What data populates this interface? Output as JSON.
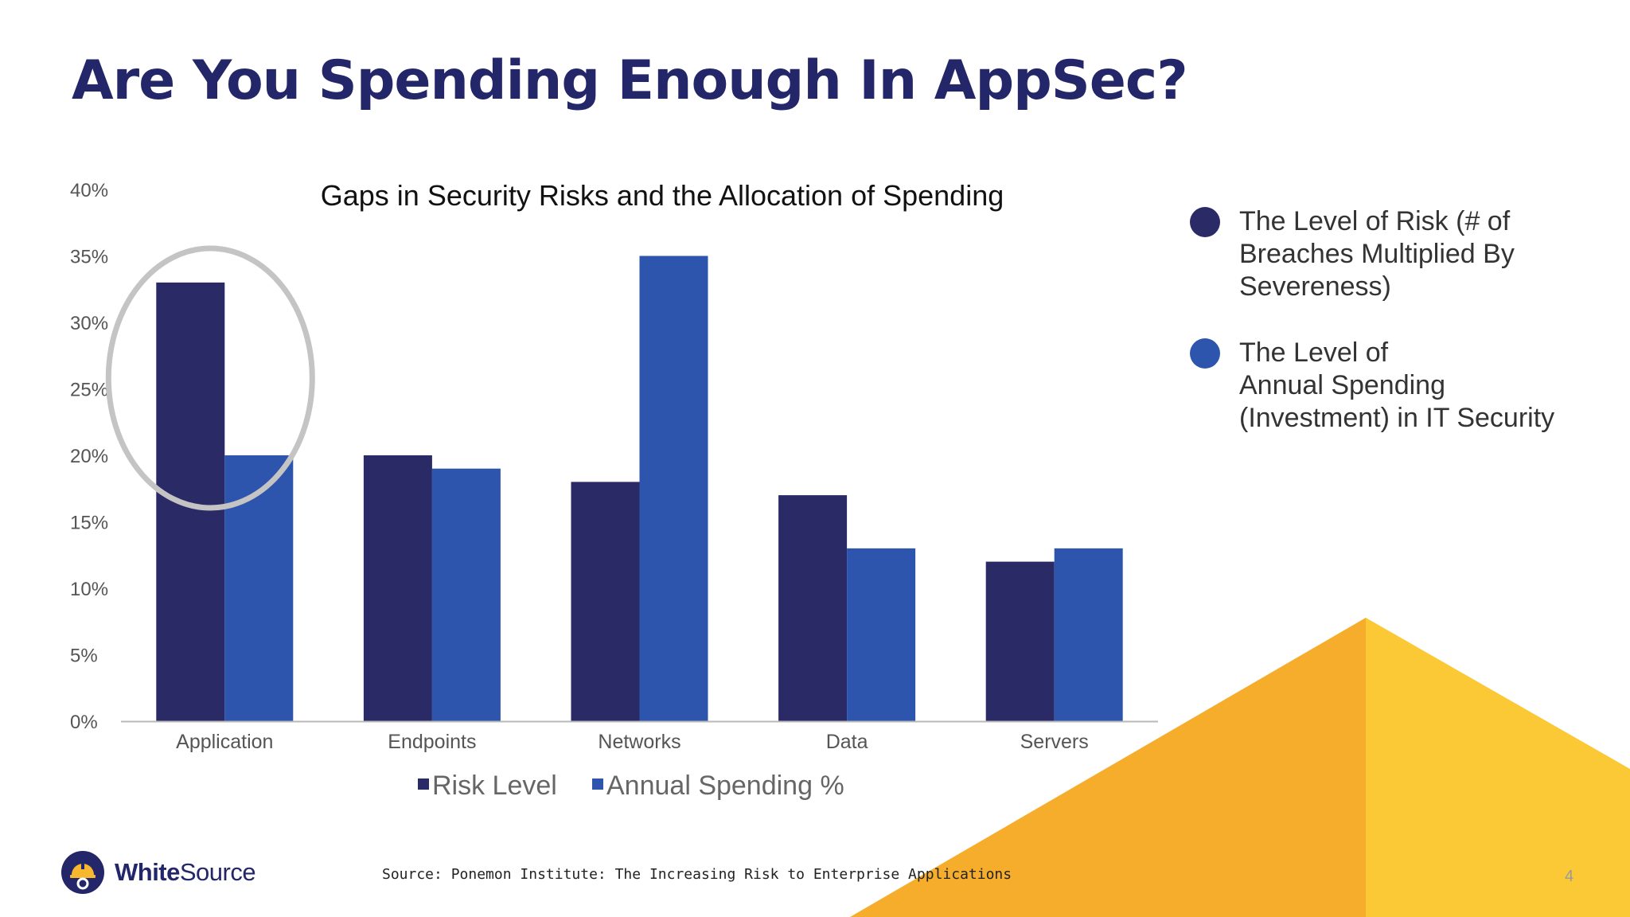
{
  "slide": {
    "title": "Are You Spending Enough In AppSec?",
    "source": "Source: Ponemon Institute: The Increasing Risk to Enterprise Applications",
    "page_number": "4",
    "logo": {
      "bold": "White",
      "regular": "Source",
      "icon": "hardhat-gear-icon"
    }
  },
  "legend_right": [
    {
      "lines": [
        "The Level of Risk (# of",
        "Breaches Multiplied By",
        "Severeness)"
      ],
      "color": "#2a2a66"
    },
    {
      "lines": [
        "The Level of",
        "Annual Spending",
        "(Investment) in IT Security"
      ],
      "color": "#2e55ad"
    }
  ],
  "chart_data": {
    "type": "bar",
    "title": "Gaps in Security Risks and the Allocation of Spending",
    "categories": [
      "Application",
      "Endpoints",
      "Networks",
      "Data",
      "Servers"
    ],
    "series": [
      {
        "name": "Risk Level",
        "values": [
          33,
          20,
          18,
          17,
          12
        ],
        "color": "#2a2a66"
      },
      {
        "name": "Annual Spending %",
        "values": [
          20,
          19,
          35,
          13,
          13
        ],
        "color": "#2e55ad"
      }
    ],
    "yticks": [
      "0%",
      "5%",
      "10%",
      "15%",
      "20%",
      "25%",
      "30%",
      "35%",
      "40%"
    ],
    "ylim": [
      0,
      40
    ],
    "xlabel": "",
    "ylabel": "",
    "grid": false,
    "legend_position": "bottom",
    "highlight": {
      "category": "Application",
      "shape": "ellipse",
      "color": "#c4c4c4"
    }
  },
  "colors": {
    "title": "#232668",
    "triangle_left": "#f5ad2b",
    "triangle_right": "#fbc935"
  }
}
